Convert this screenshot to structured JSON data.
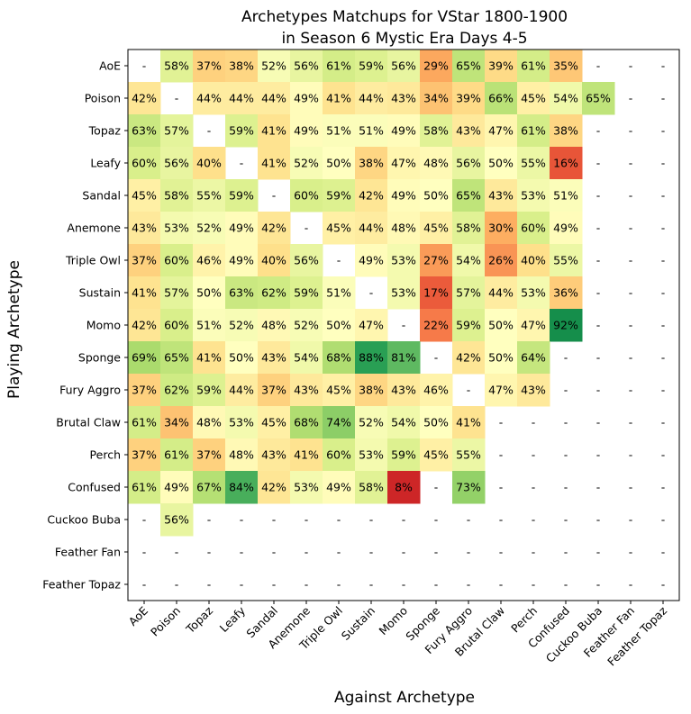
{
  "chart_data": {
    "type": "heatmap",
    "title_lines": [
      "Archetypes Matchups for VStar 1800-1900",
      "in Season 6 Mystic Era Days 4-5"
    ],
    "xlabel": "Against Archetype",
    "ylabel": "Playing Archetype",
    "x_categories": [
      "AoE",
      "Poison",
      "Topaz",
      "Leafy",
      "Sandal",
      "Anemone",
      "Triple Owl",
      "Sustain",
      "Momo",
      "Sponge",
      "Fury Aggro",
      "Brutal Claw",
      "Perch",
      "Confused",
      "Cuckoo Buba",
      "Feather Fan",
      "Feather Topaz"
    ],
    "y_categories": [
      "AoE",
      "Poison",
      "Topaz",
      "Leafy",
      "Sandal",
      "Anemone",
      "Triple Owl",
      "Sustain",
      "Momo",
      "Sponge",
      "Fury Aggro",
      "Brutal Claw",
      "Perch",
      "Confused",
      "Cuckoo Buba",
      "Feather Fan",
      "Feather Topaz"
    ],
    "missing_label": "-",
    "value_suffix": "%",
    "colormap": "RdYlGn",
    "vmin": 0,
    "vmax": 100,
    "values": [
      [
        null,
        58,
        37,
        38,
        52,
        56,
        61,
        59,
        56,
        29,
        65,
        39,
        61,
        35,
        null,
        null,
        null
      ],
      [
        42,
        null,
        44,
        44,
        44,
        49,
        41,
        44,
        43,
        34,
        39,
        66,
        45,
        54,
        65,
        null,
        null
      ],
      [
        63,
        57,
        null,
        59,
        41,
        49,
        51,
        51,
        49,
        58,
        43,
        47,
        61,
        38,
        null,
        null,
        null
      ],
      [
        60,
        56,
        40,
        null,
        41,
        52,
        50,
        38,
        47,
        48,
        56,
        50,
        55,
        16,
        null,
        null,
        null
      ],
      [
        45,
        58,
        55,
        59,
        null,
        60,
        59,
        42,
        49,
        50,
        65,
        43,
        53,
        51,
        null,
        null,
        null
      ],
      [
        43,
        53,
        52,
        49,
        42,
        null,
        45,
        44,
        48,
        45,
        58,
        30,
        60,
        49,
        null,
        null,
        null
      ],
      [
        37,
        60,
        46,
        49,
        40,
        56,
        null,
        49,
        53,
        27,
        54,
        26,
        40,
        55,
        null,
        null,
        null
      ],
      [
        41,
        57,
        50,
        63,
        62,
        59,
        51,
        null,
        53,
        17,
        57,
        44,
        53,
        36,
        null,
        null,
        null
      ],
      [
        42,
        60,
        51,
        52,
        48,
        52,
        50,
        47,
        null,
        22,
        59,
        50,
        47,
        92,
        null,
        null,
        null
      ],
      [
        69,
        65,
        41,
        50,
        43,
        54,
        68,
        88,
        81,
        null,
        42,
        50,
        64,
        null,
        null,
        null,
        null
      ],
      [
        37,
        62,
        59,
        44,
        37,
        43,
        45,
        38,
        43,
        46,
        null,
        47,
        43,
        null,
        null,
        null,
        null
      ],
      [
        61,
        34,
        48,
        53,
        45,
        68,
        74,
        52,
        54,
        50,
        41,
        null,
        null,
        null,
        null,
        null,
        null
      ],
      [
        37,
        61,
        37,
        48,
        43,
        41,
        60,
        53,
        59,
        45,
        55,
        null,
        null,
        null,
        null,
        null,
        null
      ],
      [
        61,
        49,
        67,
        84,
        42,
        53,
        49,
        58,
        8,
        null,
        73,
        null,
        null,
        null,
        null,
        null,
        null
      ],
      [
        null,
        56,
        null,
        null,
        null,
        null,
        null,
        null,
        null,
        null,
        null,
        null,
        null,
        null,
        null,
        null,
        null
      ],
      [
        null,
        null,
        null,
        null,
        null,
        null,
        null,
        null,
        null,
        null,
        null,
        null,
        null,
        null,
        null,
        null,
        null
      ],
      [
        null,
        null,
        null,
        null,
        null,
        null,
        null,
        null,
        null,
        null,
        null,
        null,
        null,
        null,
        null,
        null,
        null
      ]
    ]
  }
}
